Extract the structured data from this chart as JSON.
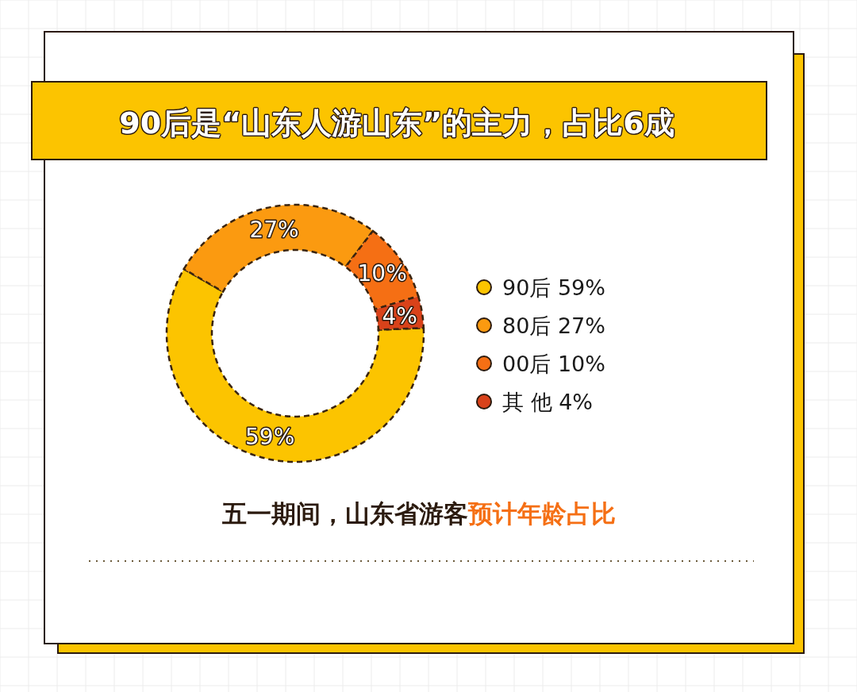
{
  "chart_data": {
    "type": "donut",
    "title": "90后是“山东人游山东”的主力，占比6成",
    "subtitle": "五一期间，山东省游客",
    "annotations": [
      "预计年龄占比"
    ],
    "categories": [
      "90后 59%",
      "80后 27%",
      "00后 10%",
      "其 他 4%"
    ],
    "values": [
      59,
      27,
      10,
      4
    ],
    "colors": [
      "#fcc400",
      "#fb9a10",
      "#f56f14",
      "#d9421a"
    ],
    "value_labels": [
      "59%",
      "27%",
      "10%",
      "4%"
    ],
    "legend": "right"
  }
}
